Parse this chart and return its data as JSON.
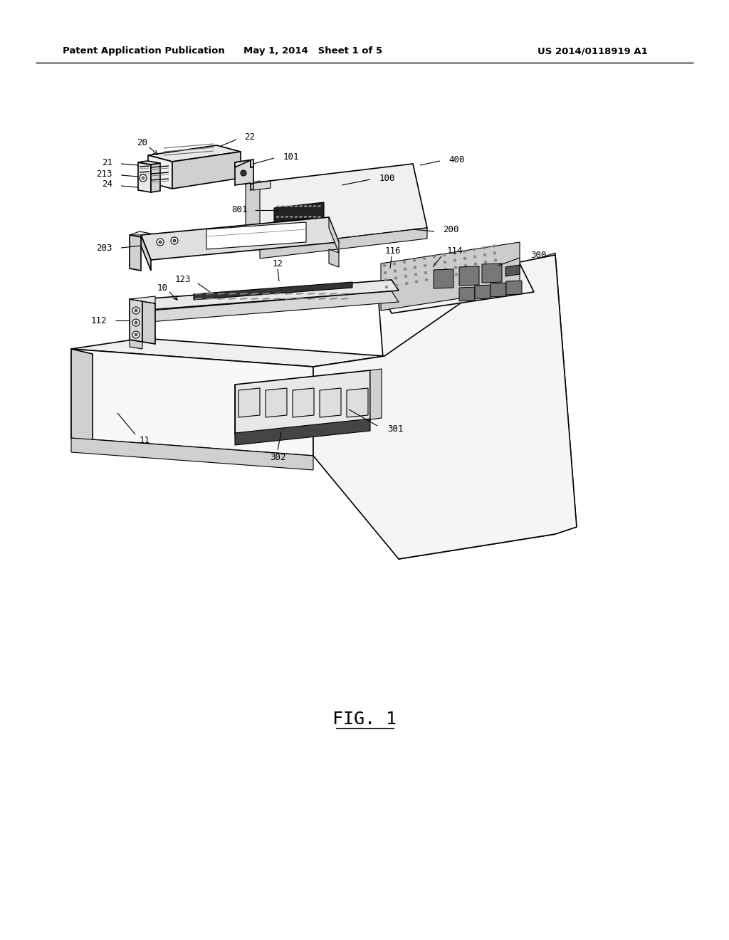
{
  "bg_color": "#ffffff",
  "lc": "#000000",
  "header_left": "Patent Application Publication",
  "header_mid": "May 1, 2014   Sheet 1 of 5",
  "header_right": "US 2014/0118919 A1",
  "fig_label": "FIG. 1",
  "gray_light": "#e8e8e8",
  "gray_mid": "#d0d0d0",
  "gray_dark": "#a0a0a0",
  "black": "#111111",
  "white": "#ffffff"
}
